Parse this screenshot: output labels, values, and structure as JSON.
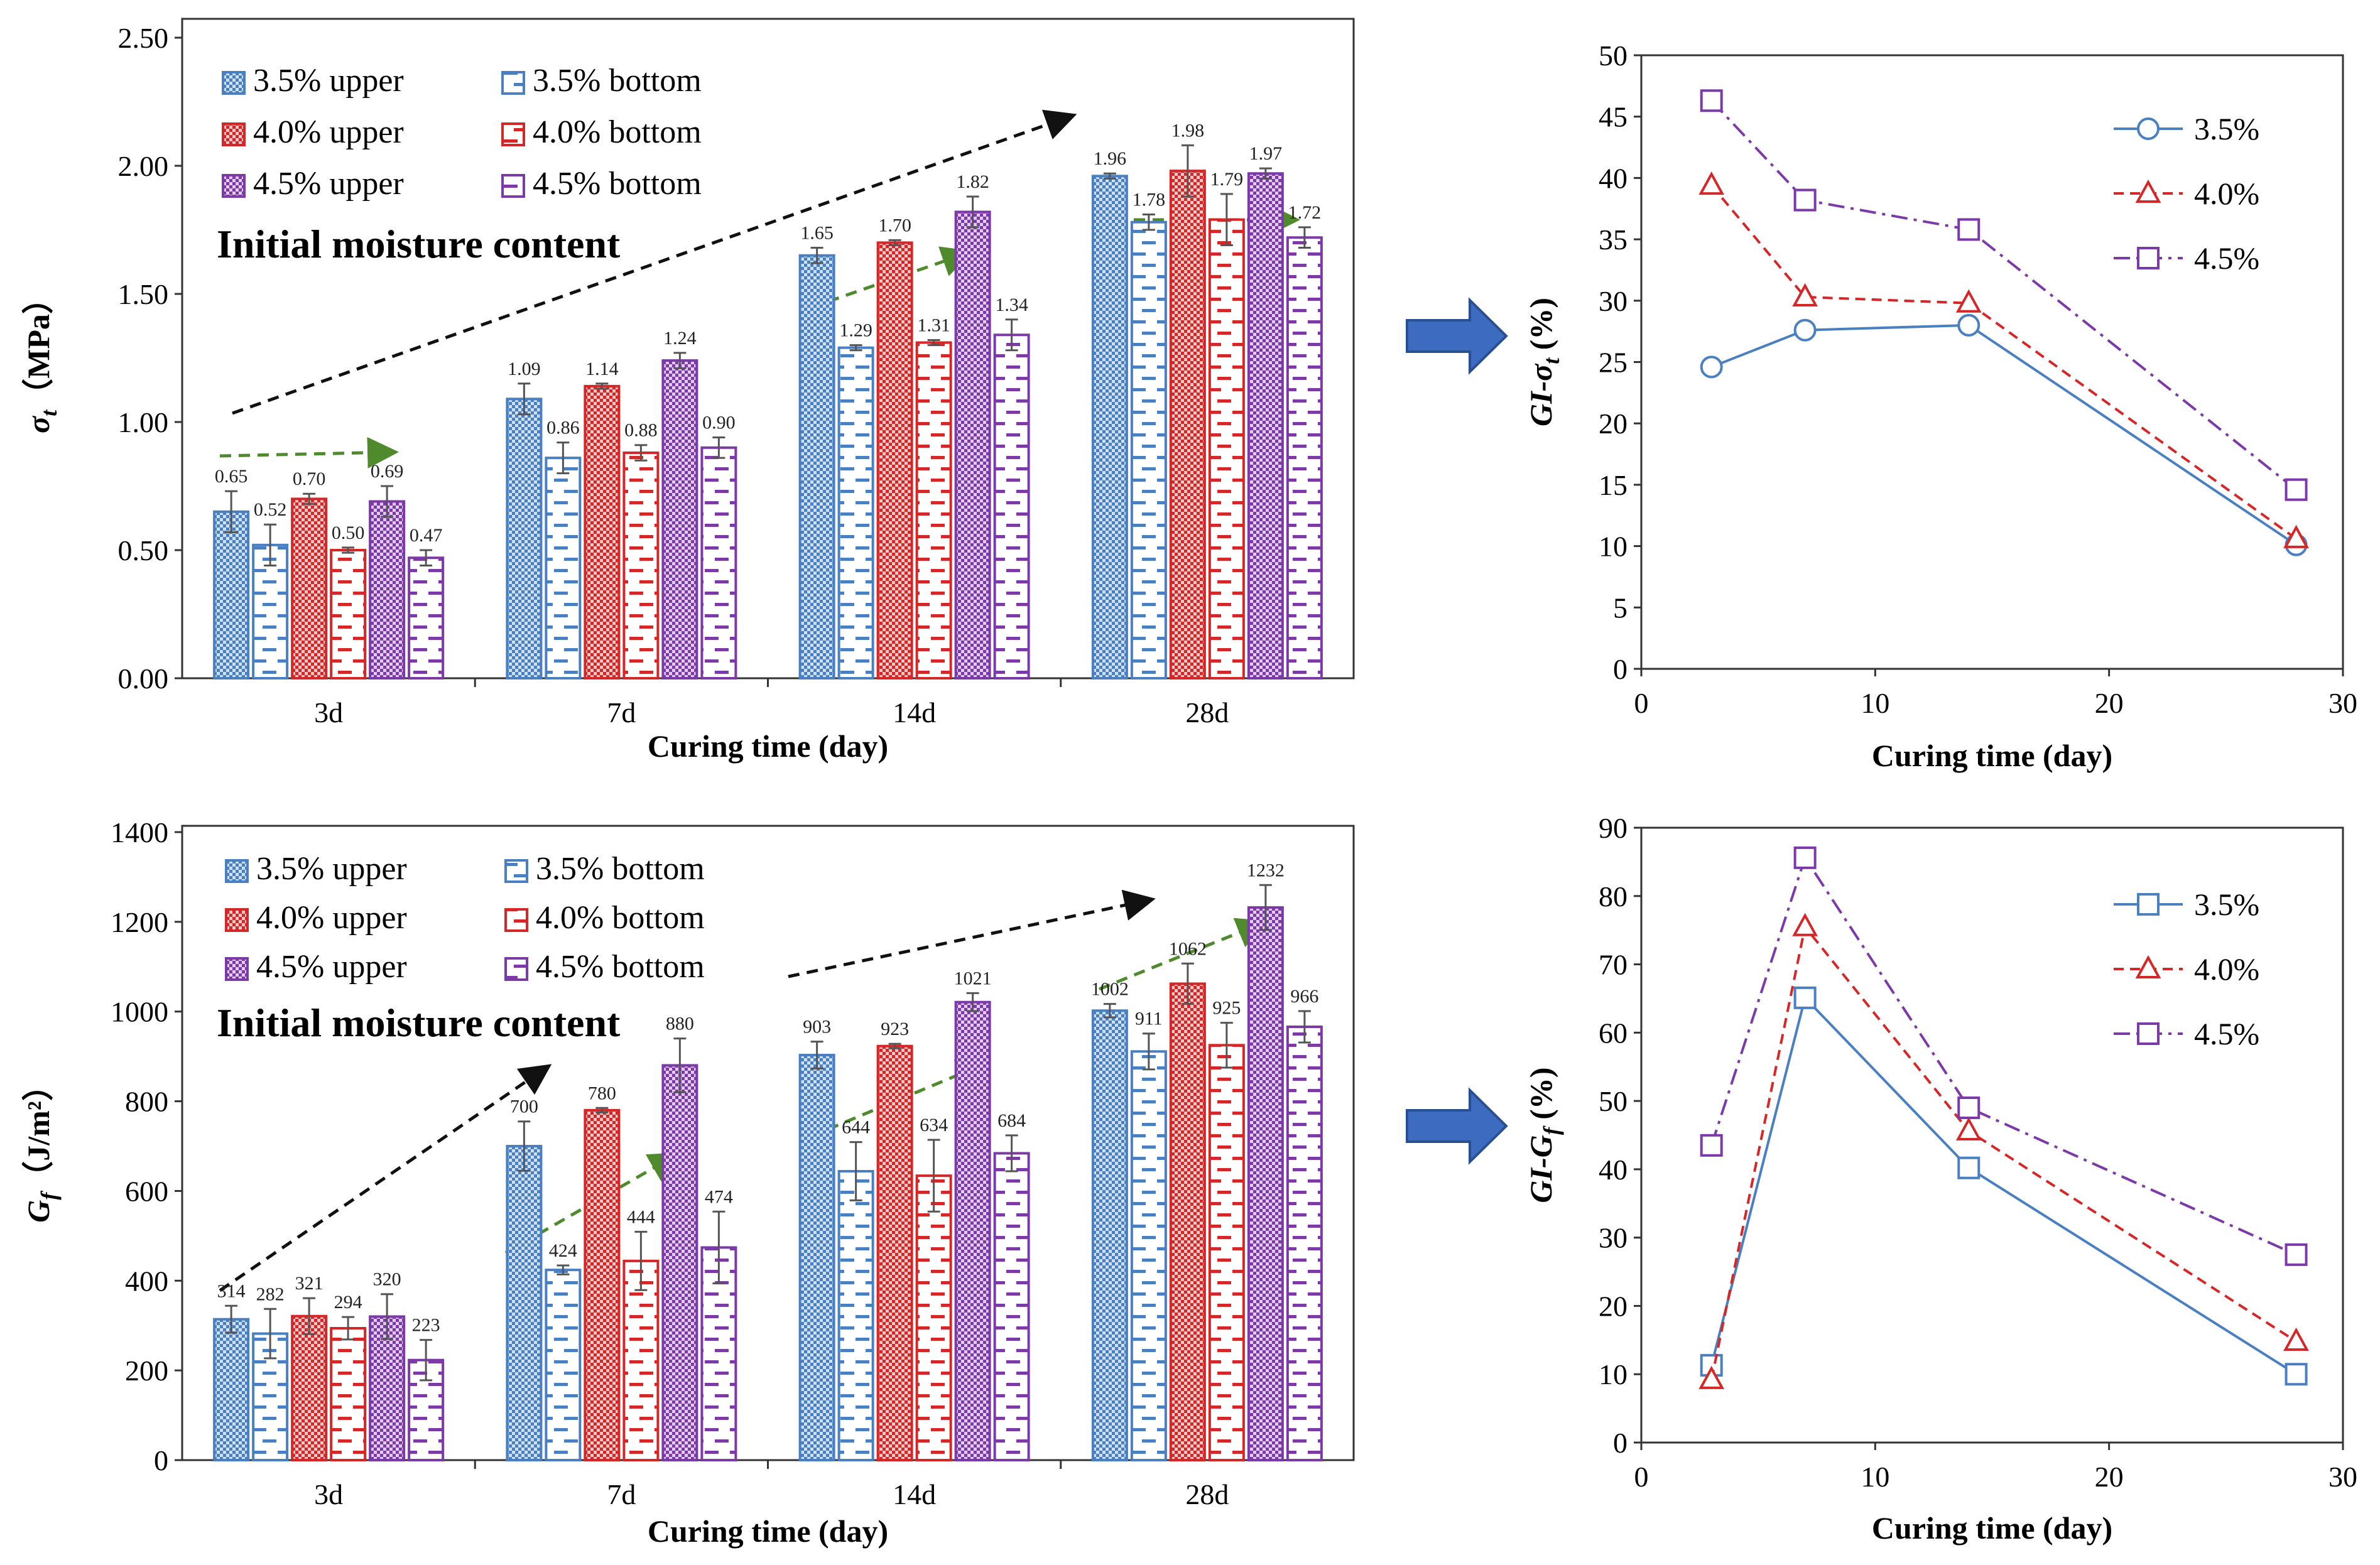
{
  "colors": {
    "blue": "#4a7fc1",
    "red": "#d62728",
    "purple": "#7b3aa8",
    "green_arrow": "#4f8a2c",
    "black_arrow": "#111111",
    "big_arrow": "#3d6bbf"
  },
  "chart_data": [
    {
      "id": "bar_tensile",
      "type": "bar",
      "categories": [
        "3d",
        "7d",
        "14d",
        "28d"
      ],
      "xlabel": "Curing time (day)",
      "ylabel_main": "σ",
      "ylabel_sub": "t",
      "ylabel_unit": "（MPa）",
      "annotation": "Initial moisture content",
      "ylim": [
        0,
        2.5
      ],
      "yticks": [
        "0.00",
        "0.50",
        "1.00",
        "1.50",
        "2.00",
        "2.50"
      ],
      "series": [
        {
          "name": "3.5% upper",
          "values": [
            0.65,
            1.09,
            1.65,
            1.96
          ],
          "labels": [
            "0.65",
            "1.09",
            "1.65",
            "1.96"
          ],
          "errors": [
            0.08,
            0.06,
            0.03,
            0.01
          ]
        },
        {
          "name": "3.5% bottom",
          "values": [
            0.52,
            0.86,
            1.29,
            1.78
          ],
          "labels": [
            "0.52",
            "0.86",
            "1.29",
            "1.78"
          ],
          "errors": [
            0.08,
            0.06,
            0.01,
            0.03
          ]
        },
        {
          "name": "4.0% upper",
          "values": [
            0.7,
            1.14,
            1.7,
            1.98
          ],
          "labels": [
            "0.70",
            "1.14",
            "1.70",
            "1.98"
          ],
          "errors": [
            0.02,
            0.01,
            0.01,
            0.1
          ]
        },
        {
          "name": "4.0% bottom",
          "values": [
            0.5,
            0.88,
            1.31,
            1.79
          ],
          "labels": [
            "0.50",
            "0.88",
            "1.31",
            "1.79"
          ],
          "errors": [
            0.01,
            0.03,
            0.01,
            0.1
          ]
        },
        {
          "name": "4.5% upper",
          "values": [
            0.69,
            1.24,
            1.82,
            1.97
          ],
          "labels": [
            "0.69",
            "1.24",
            "1.82",
            "1.97"
          ],
          "errors": [
            0.06,
            0.03,
            0.06,
            0.02
          ]
        },
        {
          "name": "4.5% bottom",
          "values": [
            0.47,
            0.9,
            1.34,
            1.72
          ],
          "labels": [
            "0.47",
            "0.90",
            "1.34",
            "1.72"
          ],
          "errors": [
            0.03,
            0.04,
            0.06,
            0.04
          ]
        }
      ]
    },
    {
      "id": "bar_fracture",
      "type": "bar",
      "categories": [
        "3d",
        "7d",
        "14d",
        "28d"
      ],
      "xlabel": "Curing time (day)",
      "ylabel_main": "G",
      "ylabel_sub": "f",
      "ylabel_unit": "（J/m²）",
      "annotation": "Initial moisture content",
      "ylim": [
        0,
        1400
      ],
      "yticks": [
        "0",
        "200",
        "400",
        "600",
        "800",
        "1000",
        "1200",
        "1400"
      ],
      "series": [
        {
          "name": "3.5% upper",
          "values": [
            314,
            700,
            903,
            1002
          ],
          "labels": [
            "314",
            "700",
            "903",
            "1002"
          ],
          "errors": [
            30,
            55,
            30,
            15
          ]
        },
        {
          "name": "3.5% bottom",
          "values": [
            282,
            424,
            644,
            911
          ],
          "labels": [
            "282",
            "424",
            "644",
            "911"
          ],
          "errors": [
            55,
            10,
            65,
            40
          ]
        },
        {
          "name": "4.0% upper",
          "values": [
            321,
            780,
            923,
            1062
          ],
          "labels": [
            "321",
            "780",
            "923",
            "1062"
          ],
          "errors": [
            40,
            5,
            5,
            45
          ]
        },
        {
          "name": "4.0% bottom",
          "values": [
            294,
            444,
            634,
            925
          ],
          "labels": [
            "294",
            "444",
            "634",
            "925"
          ],
          "errors": [
            25,
            65,
            80,
            50
          ]
        },
        {
          "name": "4.5% upper",
          "values": [
            320,
            880,
            1021,
            1232
          ],
          "labels": [
            "320",
            "880",
            "1021",
            "1232"
          ],
          "errors": [
            50,
            60,
            20,
            50
          ]
        },
        {
          "name": "4.5% bottom",
          "values": [
            223,
            474,
            684,
            966
          ],
          "labels": [
            "223",
            "474",
            "684",
            "966"
          ],
          "errors": [
            45,
            80,
            40,
            35
          ]
        }
      ]
    },
    {
      "id": "line_gi_sigma",
      "type": "line",
      "xlabel": "Curing time (day)",
      "ylabel_main": "GI-σ",
      "ylabel_sub": "t",
      "ylabel_unit": " (%)",
      "xlim": [
        0,
        30
      ],
      "ylim": [
        0,
        50
      ],
      "xticks": [
        "0",
        "10",
        "20",
        "30"
      ],
      "yticks": [
        "0",
        "5",
        "10",
        "15",
        "20",
        "25",
        "30",
        "35",
        "40",
        "45",
        "50"
      ],
      "x": [
        3,
        7,
        14,
        28
      ],
      "series": [
        {
          "name": "3.5%",
          "marker": "circle",
          "values": [
            24.6,
            27.6,
            28.0,
            10.1
          ]
        },
        {
          "name": "4.0%",
          "marker": "triangle",
          "values": [
            39.4,
            30.3,
            29.8,
            10.6
          ]
        },
        {
          "name": "4.5%",
          "marker": "square",
          "values": [
            46.3,
            38.2,
            35.8,
            14.6
          ]
        }
      ]
    },
    {
      "id": "line_gi_gf",
      "type": "line",
      "xlabel": "Curing time (day)",
      "ylabel_main": "GI-G",
      "ylabel_sub": "f",
      "ylabel_unit": " (%)",
      "xlim": [
        0,
        30
      ],
      "ylim": [
        0,
        90
      ],
      "xticks": [
        "0",
        "10",
        "20",
        "30"
      ],
      "yticks": [
        "0",
        "10",
        "20",
        "30",
        "40",
        "50",
        "60",
        "70",
        "80",
        "90"
      ],
      "x": [
        3,
        7,
        14,
        28
      ],
      "series": [
        {
          "name": "3.5%",
          "marker": "square",
          "values": [
            11.3,
            65.1,
            40.2,
            10.0
          ]
        },
        {
          "name": "4.0%",
          "marker": "triangle",
          "values": [
            9.2,
            75.5,
            45.6,
            14.8
          ]
        },
        {
          "name": "4.5%",
          "marker": "square",
          "values": [
            43.5,
            85.6,
            49.0,
            27.5
          ]
        }
      ]
    }
  ]
}
